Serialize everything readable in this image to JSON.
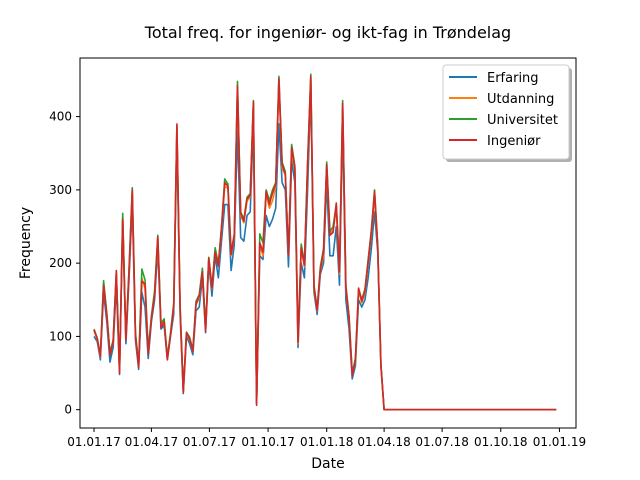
{
  "chart_data": {
    "type": "line",
    "title": "Total freq. for ingeniør- og ikt-fag in Trøndelag",
    "xlabel": "Date",
    "ylabel": "Frequency",
    "xlim": [
      "2016-12-10",
      "2019-01-27"
    ],
    "ylim": [
      -25,
      480
    ],
    "x_ticks": [
      {
        "date": "2017-01-01",
        "label": "01.01.17"
      },
      {
        "date": "2017-04-01",
        "label": "01.04.17"
      },
      {
        "date": "2017-07-01",
        "label": "01.07.17"
      },
      {
        "date": "2017-10-01",
        "label": "01.10.17"
      },
      {
        "date": "2018-01-01",
        "label": "01.01.18"
      },
      {
        "date": "2018-04-01",
        "label": "01.04.18"
      },
      {
        "date": "2018-07-01",
        "label": "01.07.18"
      },
      {
        "date": "2018-10-01",
        "label": "01.10.18"
      },
      {
        "date": "2019-01-01",
        "label": "01.01.19"
      }
    ],
    "y_ticks": [
      0,
      100,
      200,
      300,
      400
    ],
    "legend_position": "top-right",
    "grid": false,
    "x": [
      "2017-01-01",
      "2017-01-06",
      "2017-01-11",
      "2017-01-16",
      "2017-01-21",
      "2017-01-26",
      "2017-01-31",
      "2017-02-05",
      "2017-02-10",
      "2017-02-15",
      "2017-02-20",
      "2017-02-25",
      "2017-03-02",
      "2017-03-07",
      "2017-03-12",
      "2017-03-17",
      "2017-03-22",
      "2017-03-27",
      "2017-04-01",
      "2017-04-06",
      "2017-04-11",
      "2017-04-16",
      "2017-04-21",
      "2017-04-26",
      "2017-05-01",
      "2017-05-06",
      "2017-05-11",
      "2017-05-16",
      "2017-05-21",
      "2017-05-26",
      "2017-05-31",
      "2017-06-05",
      "2017-06-10",
      "2017-06-15",
      "2017-06-20",
      "2017-06-25",
      "2017-06-30",
      "2017-07-05",
      "2017-07-10",
      "2017-07-15",
      "2017-07-20",
      "2017-07-25",
      "2017-07-30",
      "2017-08-04",
      "2017-08-09",
      "2017-08-14",
      "2017-08-19",
      "2017-08-24",
      "2017-08-29",
      "2017-09-03",
      "2017-09-08",
      "2017-09-13",
      "2017-09-18",
      "2017-09-23",
      "2017-09-28",
      "2017-10-03",
      "2017-10-08",
      "2017-10-13",
      "2017-10-18",
      "2017-10-23",
      "2017-10-28",
      "2017-11-02",
      "2017-11-07",
      "2017-11-12",
      "2017-11-17",
      "2017-11-22",
      "2017-11-27",
      "2017-12-02",
      "2017-12-07",
      "2017-12-12",
      "2017-12-17",
      "2017-12-22",
      "2017-12-27",
      "2018-01-01",
      "2018-01-06",
      "2018-01-11",
      "2018-01-16",
      "2018-01-21",
      "2018-01-26",
      "2018-01-31",
      "2018-02-05",
      "2018-02-10",
      "2018-02-15",
      "2018-02-20",
      "2018-02-25",
      "2018-03-02",
      "2018-03-07",
      "2018-03-12",
      "2018-03-17",
      "2018-03-22",
      "2018-03-27",
      "2018-04-01",
      "2018-04-06",
      "2018-04-11",
      "2018-04-16",
      "2018-04-21",
      "2018-04-26",
      "2018-05-01",
      "2018-05-06",
      "2018-05-11",
      "2018-05-16",
      "2018-05-21",
      "2018-05-26",
      "2018-05-31",
      "2018-06-05",
      "2018-06-10",
      "2018-06-15",
      "2018-06-20",
      "2018-06-25",
      "2018-06-30",
      "2018-07-05",
      "2018-07-10",
      "2018-07-15",
      "2018-07-20",
      "2018-07-25",
      "2018-07-30",
      "2018-08-04",
      "2018-08-09",
      "2018-08-14",
      "2018-08-19",
      "2018-08-24",
      "2018-08-29",
      "2018-09-03",
      "2018-09-08",
      "2018-09-13",
      "2018-09-18",
      "2018-09-23",
      "2018-09-28",
      "2018-10-03",
      "2018-10-08",
      "2018-10-13",
      "2018-10-18",
      "2018-10-23",
      "2018-10-28",
      "2018-11-02",
      "2018-11-07",
      "2018-11-12",
      "2018-11-17",
      "2018-11-22",
      "2018-11-27",
      "2018-12-02",
      "2018-12-07",
      "2018-12-12",
      "2018-12-17",
      "2018-12-22",
      "2018-12-27"
    ],
    "series": [
      {
        "name": "Erfaring",
        "color": "#1f77b4",
        "values": [
          100,
          93,
          68,
          160,
          120,
          65,
          85,
          170,
          48,
          255,
          90,
          180,
          280,
          95,
          55,
          160,
          140,
          70,
          120,
          150,
          220,
          110,
          115,
          68,
          100,
          130,
          370,
          130,
          22,
          100,
          90,
          75,
          135,
          140,
          180,
          105,
          200,
          155,
          210,
          180,
          230,
          280,
          280,
          190,
          225,
          380,
          235,
          230,
          265,
          270,
          390,
          8,
          210,
          205,
          265,
          250,
          260,
          275,
          390,
          310,
          300,
          195,
          340,
          310,
          85,
          200,
          180,
          300,
          440,
          160,
          130,
          185,
          200,
          310,
          210,
          210,
          250,
          170,
          390,
          150,
          110,
          42,
          60,
          150,
          140,
          150,
          180,
          220,
          270,
          215,
          60,
          0,
          0,
          0,
          0,
          0,
          0,
          0,
          0,
          0,
          0,
          0,
          0,
          0,
          0,
          0,
          0,
          0,
          0,
          0,
          0,
          0,
          0,
          0,
          0,
          0,
          0,
          0,
          0,
          0,
          0,
          0,
          0,
          0,
          0,
          0,
          0,
          0,
          0,
          0,
          0,
          0,
          0,
          0,
          0,
          0,
          0,
          0,
          0,
          0,
          0,
          0,
          0,
          0,
          0,
          0
        ]
      },
      {
        "name": "Utdanning",
        "color": "#ff7f0e",
        "values": [
          108,
          96,
          72,
          172,
          130,
          75,
          92,
          185,
          52,
          262,
          96,
          190,
          295,
          102,
          60,
          180,
          165,
          78,
          125,
          158,
          232,
          115,
          120,
          70,
          103,
          140,
          385,
          138,
          25,
          104,
          96,
          80,
          143,
          152,
          190,
          108,
          206,
          165,
          218,
          195,
          245,
          305,
          302,
          210,
          235,
          440,
          265,
          255,
          285,
          290,
          418,
          8,
          225,
          210,
          295,
          275,
          285,
          305,
          445,
          330,
          320,
          210,
          355,
          325,
          90,
          220,
          195,
          330,
          450,
          165,
          135,
          190,
          210,
          330,
          240,
          245,
          275,
          185,
          415,
          165,
          125,
          47,
          67,
          162,
          146,
          160,
          200,
          240,
          292,
          222,
          60,
          0,
          0,
          0,
          0,
          0,
          0,
          0,
          0,
          0,
          0,
          0,
          0,
          0,
          0,
          0,
          0,
          0,
          0,
          0,
          0,
          0,
          0,
          0,
          0,
          0,
          0,
          0,
          0,
          0,
          0,
          0,
          0,
          0,
          0,
          0,
          0,
          0,
          0,
          0,
          0,
          0,
          0,
          0,
          0,
          0,
          0,
          0,
          0,
          0,
          0,
          0,
          0,
          0,
          0,
          0
        ]
      },
      {
        "name": "Universitet",
        "color": "#2ca02c",
        "values": [
          110,
          98,
          75,
          176,
          132,
          78,
          95,
          188,
          55,
          268,
          98,
          195,
          303,
          105,
          62,
          192,
          177,
          80,
          128,
          162,
          238,
          118,
          124,
          72,
          105,
          145,
          388,
          142,
          27,
          106,
          99,
          82,
          148,
          157,
          193,
          111,
          208,
          168,
          221,
          199,
          250,
          315,
          308,
          215,
          240,
          448,
          270,
          260,
          290,
          295,
          422,
          9,
          240,
          228,
          300,
          285,
          300,
          310,
          455,
          338,
          325,
          212,
          362,
          333,
          95,
          226,
          200,
          338,
          458,
          170,
          138,
          195,
          220,
          338,
          243,
          250,
          280,
          190,
          422,
          170,
          128,
          50,
          70,
          165,
          150,
          165,
          205,
          245,
          300,
          225,
          62,
          0,
          0,
          0,
          0,
          0,
          0,
          0,
          0,
          0,
          0,
          0,
          0,
          0,
          0,
          0,
          0,
          0,
          0,
          0,
          0,
          0,
          0,
          0,
          0,
          0,
          0,
          0,
          0,
          0,
          0,
          0,
          0,
          0,
          0,
          0,
          0,
          0,
          0,
          0,
          0,
          0,
          0,
          0,
          0,
          0,
          0,
          0,
          0,
          0,
          0,
          0,
          0,
          0,
          0,
          0
        ]
      },
      {
        "name": "Ingeniør",
        "color": "#d62728",
        "values": [
          109,
          97,
          73,
          170,
          130,
          74,
          93,
          190,
          50,
          260,
          95,
          190,
          300,
          100,
          58,
          175,
          172,
          76,
          124,
          156,
          236,
          112,
          120,
          68,
          102,
          142,
          390,
          140,
          24,
          105,
          97,
          80,
          145,
          155,
          188,
          107,
          207,
          166,
          215,
          196,
          248,
          310,
          305,
          212,
          237,
          442,
          268,
          257,
          288,
          292,
          420,
          6,
          228,
          215,
          298,
          280,
          296,
          308,
          452,
          334,
          322,
          210,
          358,
          330,
          92,
          222,
          197,
          335,
          455,
          168,
          136,
          192,
          216,
          335,
          238,
          242,
          282,
          188,
          418,
          168,
          126,
          46,
          68,
          166,
          148,
          163,
          202,
          243,
          298,
          223,
          60,
          0,
          0,
          0,
          0,
          0,
          0,
          0,
          0,
          0,
          0,
          0,
          0,
          0,
          0,
          0,
          0,
          0,
          0,
          0,
          0,
          0,
          0,
          0,
          0,
          0,
          0,
          0,
          0,
          0,
          0,
          0,
          0,
          0,
          0,
          0,
          0,
          0,
          0,
          0,
          0,
          0,
          0,
          0,
          0,
          0,
          0,
          0,
          0,
          0,
          0,
          0,
          0,
          0,
          0,
          0
        ]
      }
    ]
  }
}
